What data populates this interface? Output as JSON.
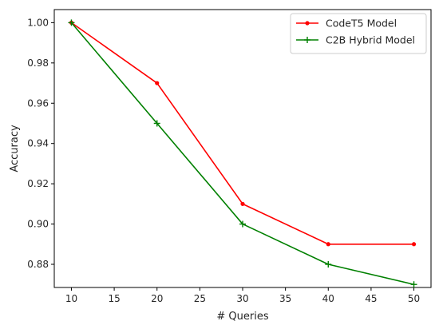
{
  "chart_data": {
    "type": "line",
    "title": "",
    "xlabel": "# Queries",
    "ylabel": "Accuracy",
    "x": [
      10,
      20,
      30,
      40,
      50
    ],
    "xlim": [
      8,
      52
    ],
    "ylim": [
      0.8685,
      1.0065
    ],
    "xticks": [
      10,
      15,
      20,
      25,
      30,
      35,
      40,
      45,
      50
    ],
    "yticks": [
      "0.88",
      "0.90",
      "0.92",
      "0.94",
      "0.96",
      "0.98",
      "1.00"
    ],
    "grid": false,
    "legend_position": "top-right",
    "series": [
      {
        "name": "CodeT5 Model",
        "values": [
          1.0,
          0.97,
          0.91,
          0.89,
          0.89
        ],
        "color": "#ff0000",
        "marker": "dot"
      },
      {
        "name": "C2B Hybrid Model",
        "values": [
          1.0,
          0.95,
          0.9,
          0.88,
          0.87
        ],
        "color": "#008000",
        "marker": "plus"
      }
    ]
  }
}
